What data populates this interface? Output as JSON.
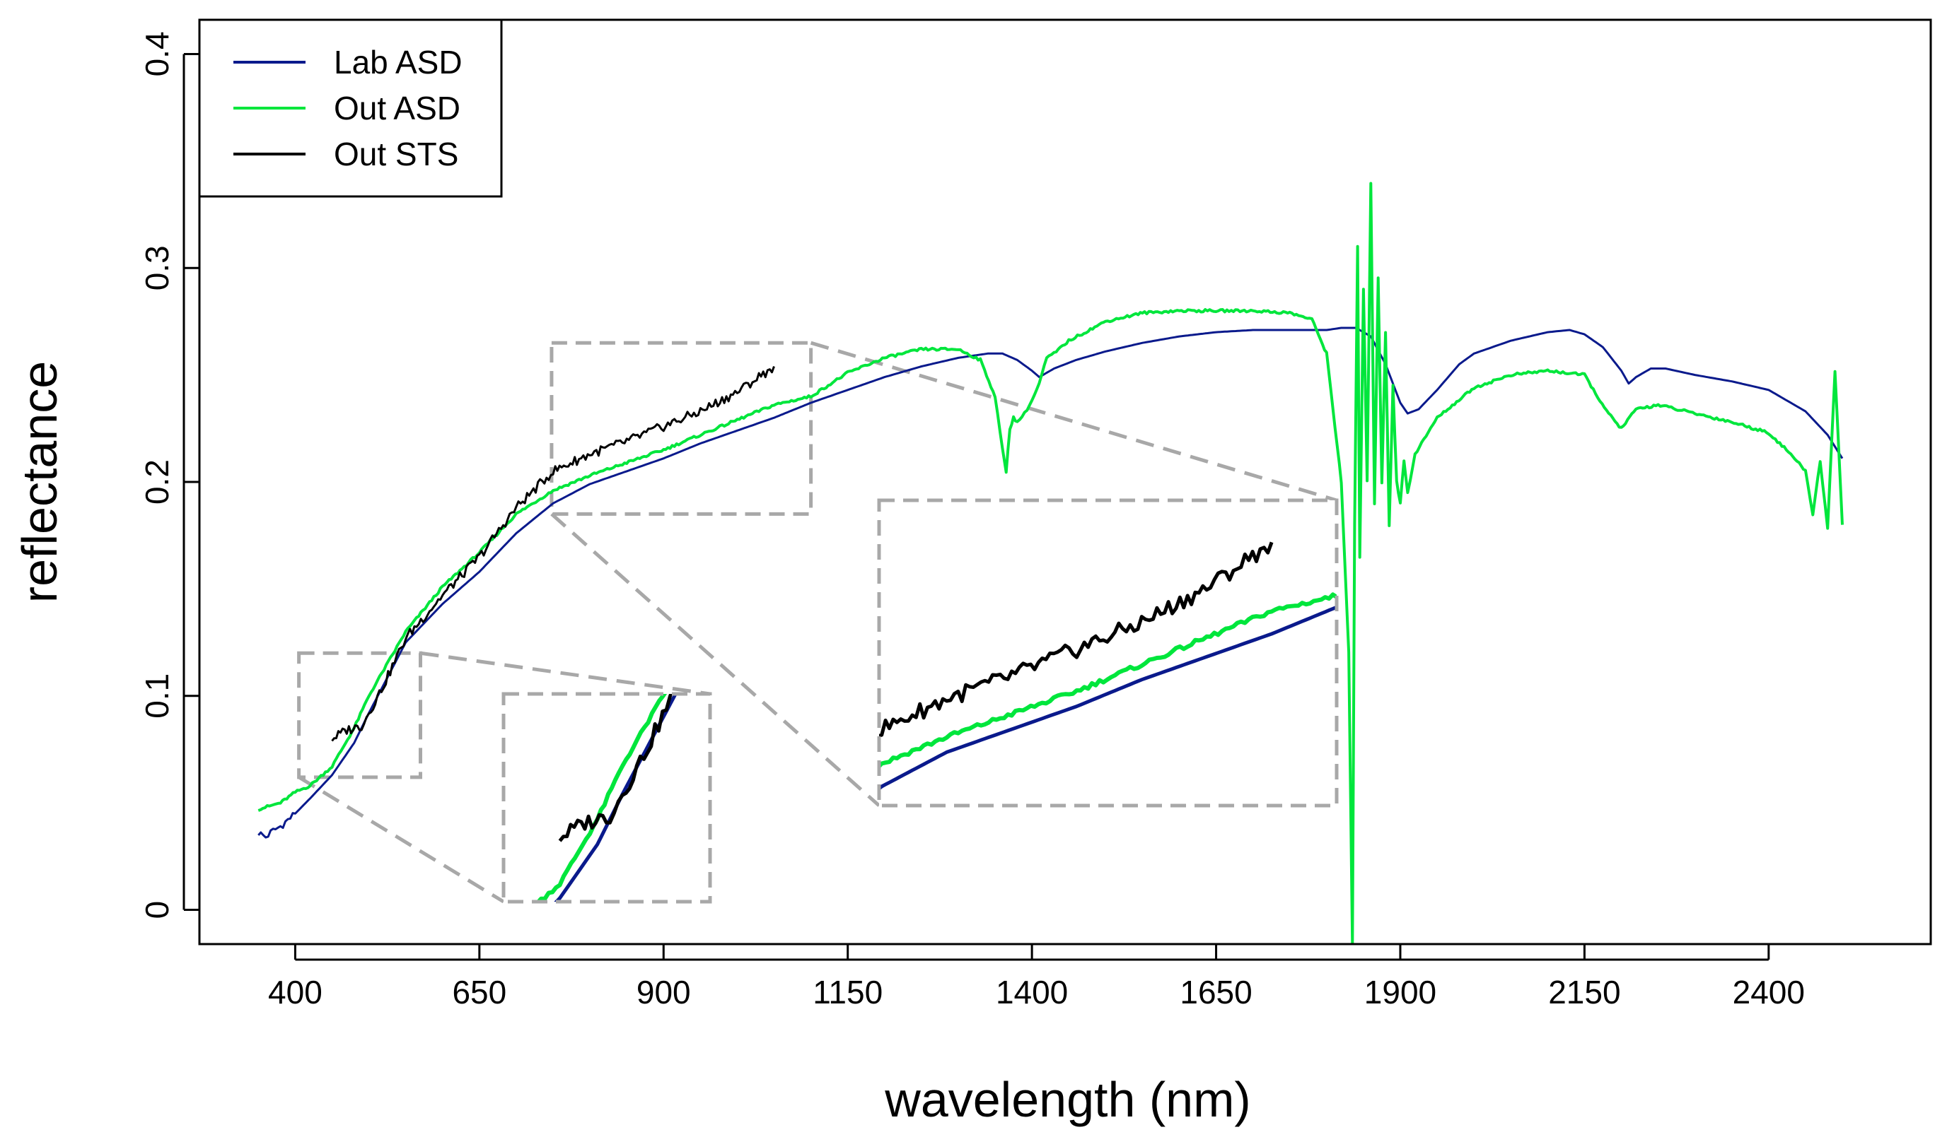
{
  "chart_data": {
    "type": "line",
    "title": "",
    "xlabel": "wavelength (nm)",
    "ylabel": "reflectance",
    "xlim": [
      270,
      2620
    ],
    "ylim": [
      -0.016,
      0.416
    ],
    "x_ticks": [
      400,
      650,
      900,
      1150,
      1400,
      1650,
      1900,
      2150,
      2400
    ],
    "x_tick_labels": [
      "400",
      "650",
      "900",
      "1150",
      "1400",
      "1650",
      "1900",
      "2150",
      "2400"
    ],
    "y_ticks": [
      0,
      0.1,
      0.2,
      0.3,
      0.4
    ],
    "y_tick_labels": [
      "0",
      "0.1",
      "0.2",
      "0.3",
      "0.4"
    ],
    "grid": false,
    "legend_position": "top-left",
    "series": [
      {
        "name": "Lab ASD",
        "color": "#0a1a8c",
        "x": [
          350,
          360,
          370,
          380,
          390,
          400,
          420,
          450,
          480,
          500,
          550,
          600,
          650,
          700,
          750,
          800,
          850,
          900,
          950,
          1000,
          1050,
          1100,
          1150,
          1200,
          1250,
          1300,
          1340,
          1360,
          1380,
          1400,
          1410,
          1430,
          1460,
          1500,
          1550,
          1600,
          1650,
          1700,
          1750,
          1800,
          1820,
          1840,
          1860,
          1880,
          1900,
          1910,
          1925,
          1950,
          1980,
          2000,
          2050,
          2100,
          2130,
          2150,
          2175,
          2200,
          2210,
          2220,
          2240,
          2260,
          2300,
          2350,
          2400,
          2450,
          2480,
          2500
        ],
        "y": [
          0.036,
          0.034,
          0.037,
          0.039,
          0.042,
          0.045,
          0.052,
          0.063,
          0.078,
          0.092,
          0.125,
          0.143,
          0.158,
          0.176,
          0.19,
          0.199,
          0.205,
          0.211,
          0.218,
          0.224,
          0.23,
          0.237,
          0.243,
          0.249,
          0.254,
          0.258,
          0.26,
          0.26,
          0.257,
          0.252,
          0.249,
          0.253,
          0.257,
          0.261,
          0.265,
          0.268,
          0.27,
          0.271,
          0.271,
          0.271,
          0.272,
          0.272,
          0.268,
          0.255,
          0.237,
          0.232,
          0.234,
          0.243,
          0.255,
          0.26,
          0.266,
          0.27,
          0.271,
          0.269,
          0.263,
          0.252,
          0.246,
          0.249,
          0.253,
          0.253,
          0.25,
          0.247,
          0.243,
          0.233,
          0.222,
          0.211
        ]
      },
      {
        "name": "Out ASD",
        "color": "#00e63c",
        "x": [
          350,
          380,
          400,
          420,
          450,
          480,
          500,
          550,
          600,
          650,
          700,
          750,
          800,
          850,
          900,
          950,
          1000,
          1050,
          1100,
          1150,
          1200,
          1250,
          1300,
          1330,
          1350,
          1360,
          1365,
          1370,
          1375,
          1380,
          1390,
          1400,
          1410,
          1420,
          1430,
          1450,
          1500,
          1550,
          1600,
          1650,
          1700,
          1750,
          1780,
          1800,
          1820,
          1830,
          1835,
          1838,
          1842,
          1845,
          1850,
          1855,
          1860,
          1865,
          1870,
          1875,
          1880,
          1885,
          1890,
          1895,
          1900,
          1905,
          1910,
          1920,
          1950,
          2000,
          2050,
          2100,
          2150,
          2180,
          2200,
          2220,
          2250,
          2300,
          2350,
          2400,
          2430,
          2450,
          2460,
          2470,
          2480,
          2490,
          2500
        ],
        "y": [
          0.047,
          0.05,
          0.055,
          0.058,
          0.067,
          0.085,
          0.1,
          0.13,
          0.151,
          0.167,
          0.185,
          0.196,
          0.203,
          0.209,
          0.215,
          0.222,
          0.229,
          0.236,
          0.24,
          0.251,
          0.258,
          0.262,
          0.262,
          0.257,
          0.24,
          0.215,
          0.205,
          0.225,
          0.23,
          0.228,
          0.232,
          0.238,
          0.246,
          0.258,
          0.26,
          0.266,
          0.275,
          0.279,
          0.28,
          0.28,
          0.28,
          0.279,
          0.276,
          0.26,
          0.2,
          0.12,
          -0.016,
          0.18,
          0.31,
          0.165,
          0.29,
          0.2,
          0.34,
          0.19,
          0.295,
          0.2,
          0.27,
          0.18,
          0.245,
          0.2,
          0.19,
          0.21,
          0.195,
          0.213,
          0.23,
          0.244,
          0.25,
          0.252,
          0.25,
          0.233,
          0.225,
          0.234,
          0.236,
          0.232,
          0.228,
          0.223,
          0.213,
          0.205,
          0.185,
          0.21,
          0.178,
          0.252,
          0.18
        ]
      },
      {
        "name": "Out STS",
        "color": "#000000",
        "x": [
          450,
          470,
          490,
          500,
          520,
          550,
          600,
          650,
          700,
          750,
          800,
          850,
          900,
          950,
          1000,
          1050
        ],
        "y": [
          0.08,
          0.084,
          0.086,
          0.092,
          0.105,
          0.127,
          0.147,
          0.165,
          0.188,
          0.205,
          0.213,
          0.219,
          0.226,
          0.233,
          0.242,
          0.254
        ]
      }
    ],
    "insets": [
      {
        "name": "zoom-vis",
        "source_range": {
          "x": [
            405,
            570
          ],
          "y": [
            0.062,
            0.12
          ]
        }
      },
      {
        "name": "zoom-nir",
        "source_range": {
          "x": [
            748,
            1100
          ],
          "y": [
            0.185,
            0.265
          ]
        }
      }
    ]
  }
}
